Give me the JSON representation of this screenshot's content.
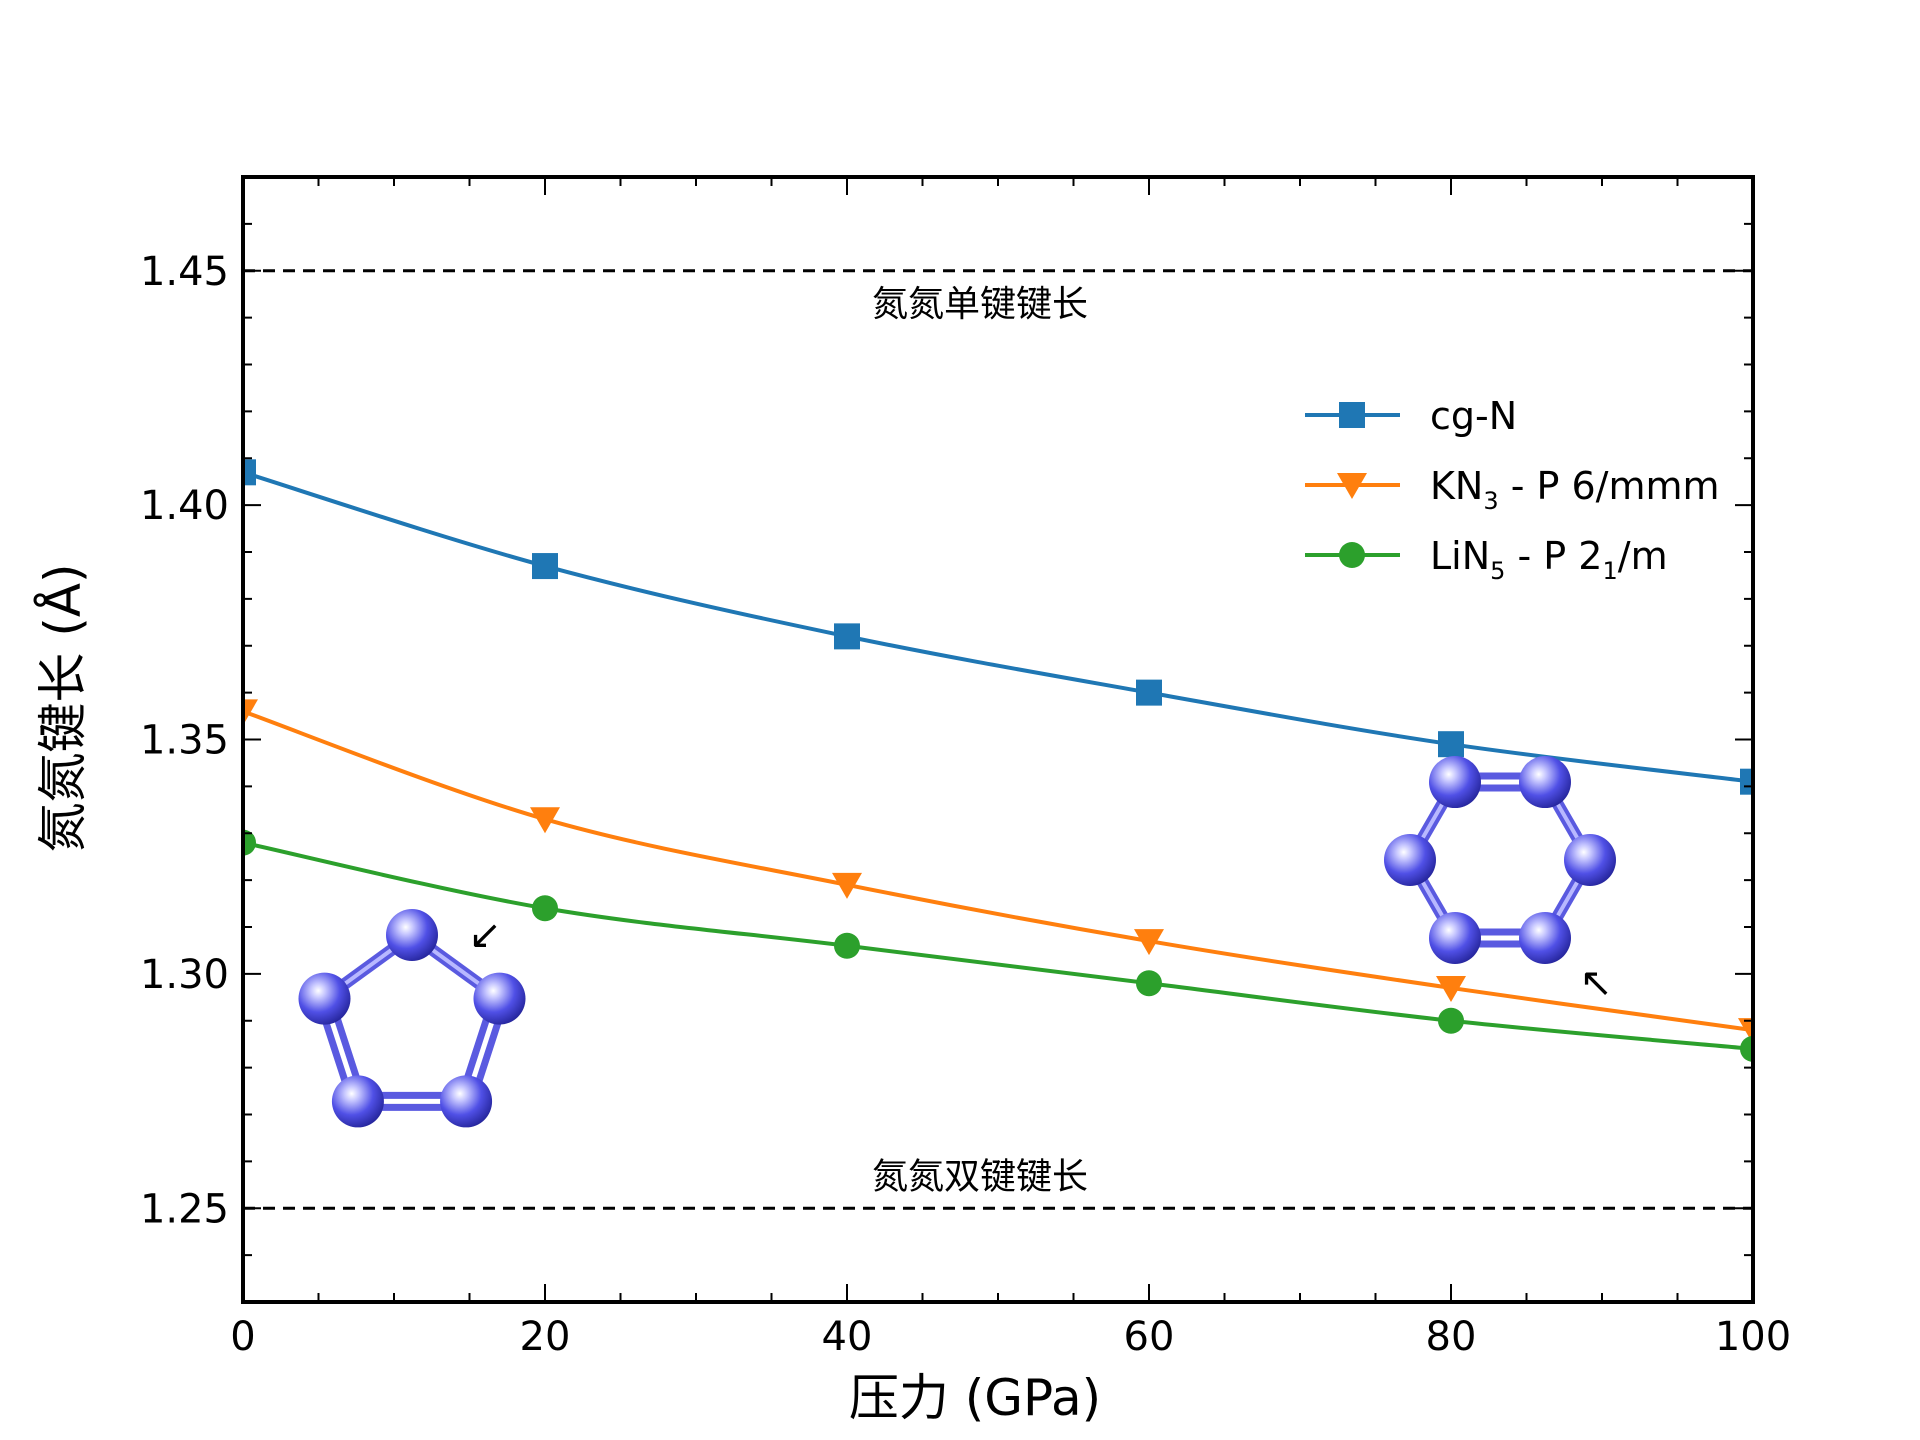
{
  "chart_data": {
    "type": "line",
    "xlabel": "压力 (GPa)",
    "ylabel": "氮氮键长 (Å)",
    "xlim": [
      0,
      100
    ],
    "ylim": [
      1.23,
      1.47
    ],
    "x_ticks": [
      "0",
      "20",
      "40",
      "60",
      "80",
      "100"
    ],
    "y_ticks": [
      "1.25",
      "1.30",
      "1.35",
      "1.40",
      "1.45"
    ],
    "x": [
      0,
      20,
      40,
      60,
      80,
      100
    ],
    "series": [
      {
        "name": "cg-N",
        "name_main": "cg-N",
        "name_sub": "",
        "name_rest": "",
        "name_sub2": "",
        "name_tail": "",
        "color": "#1f77b4",
        "marker": "square",
        "values": [
          1.407,
          1.387,
          1.372,
          1.36,
          1.349,
          1.341
        ]
      },
      {
        "name": "KN3 - P 6/mmm",
        "name_main": "KN",
        "name_sub": "3",
        "name_rest": " - P 6/mmm",
        "name_sub2": "",
        "name_tail": "",
        "color": "#ff7f0e",
        "marker": "triangle-down",
        "values": [
          1.356,
          1.333,
          1.319,
          1.307,
          1.297,
          1.288
        ]
      },
      {
        "name": "LiN5 - P 21/m",
        "name_main": "LiN",
        "name_sub": "5",
        "name_rest": " - P 2",
        "name_sub2": "1",
        "name_tail": "/m",
        "color": "#2ca02c",
        "marker": "circle",
        "values": [
          1.328,
          1.314,
          1.306,
          1.298,
          1.29,
          1.284
        ]
      }
    ],
    "reference_lines": [
      {
        "y": 1.45,
        "label": "氮氮单键键长",
        "style": "dashed"
      },
      {
        "y": 1.25,
        "label": "氮氮双键键长",
        "style": "dashed"
      }
    ],
    "legend_position": "top-right",
    "grid": false,
    "insets": [
      {
        "shape": "pentagon",
        "atoms": 5,
        "atom_color": "#4a4ad8"
      },
      {
        "shape": "hexagon",
        "atoms": 6,
        "atom_color": "#4a4ad8"
      }
    ]
  }
}
